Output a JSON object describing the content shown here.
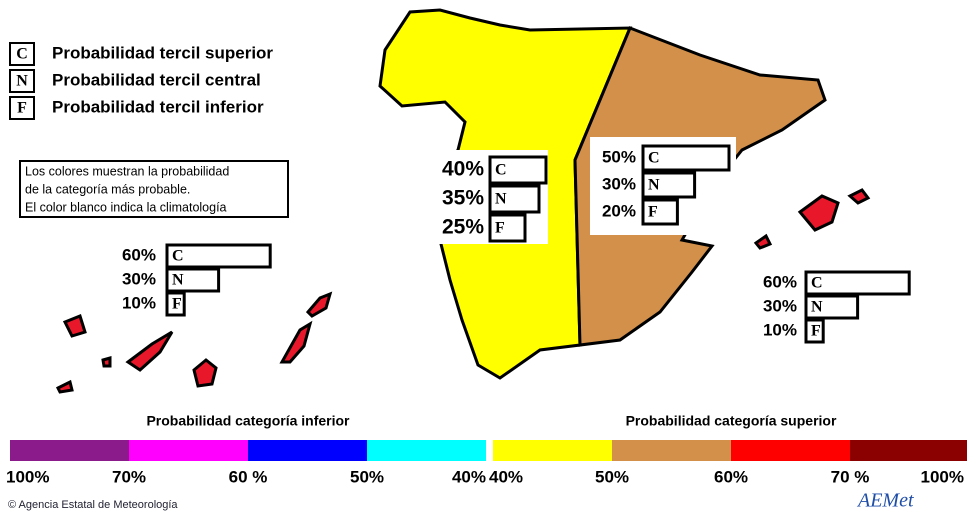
{
  "legend": [
    {
      "letter": "C",
      "label": "Probabilidad  tercil superior"
    },
    {
      "letter": "N",
      "label": "Probabilidad  tercil central"
    },
    {
      "letter": "F",
      "label": "Probabilidad  tercil inferior"
    }
  ],
  "note": [
    "Los colores muestran la probabilidad",
    "de la categoría más probable.",
    "El color blanco indica la climatología"
  ],
  "boxes": [
    {
      "categories": [
        "C",
        "N",
        "F"
      ],
      "values": [
        40,
        35,
        25
      ],
      "value_labels": [
        "40%",
        "35%",
        "25%"
      ]
    },
    {
      "categories": [
        "C",
        "N",
        "F"
      ],
      "values": [
        50,
        30,
        20
      ],
      "value_labels": [
        "50%",
        "30%",
        "20%"
      ]
    },
    {
      "categories": [
        "C",
        "N",
        "F"
      ],
      "values": [
        60,
        30,
        10
      ],
      "value_labels": [
        "60%",
        "30%",
        "10%"
      ]
    },
    {
      "categories": [
        "C",
        "N",
        "F"
      ],
      "values": [
        60,
        30,
        10
      ],
      "value_labels": [
        "60%",
        "30%",
        "10%"
      ]
    }
  ],
  "scales": [
    {
      "title": "Probabilidad categoría inferior",
      "colors": [
        "#8b1a8b",
        "#ff00ff",
        "#0000ff",
        "#00ffff"
      ],
      "labels": [
        "100%",
        "70%",
        "60 %",
        "50%",
        "40%"
      ]
    },
    {
      "title": "Probabilidad categoría superior",
      "colors": [
        "#ffff00",
        "#d2904a",
        "#ff0000",
        "#8b0000"
      ],
      "labels": [
        "40%",
        "50%",
        "60%",
        "70 %",
        "100%"
      ]
    }
  ],
  "footer": {
    "credit": "© Agencia Estatal de Meteorología",
    "logo": "AEMet"
  }
}
